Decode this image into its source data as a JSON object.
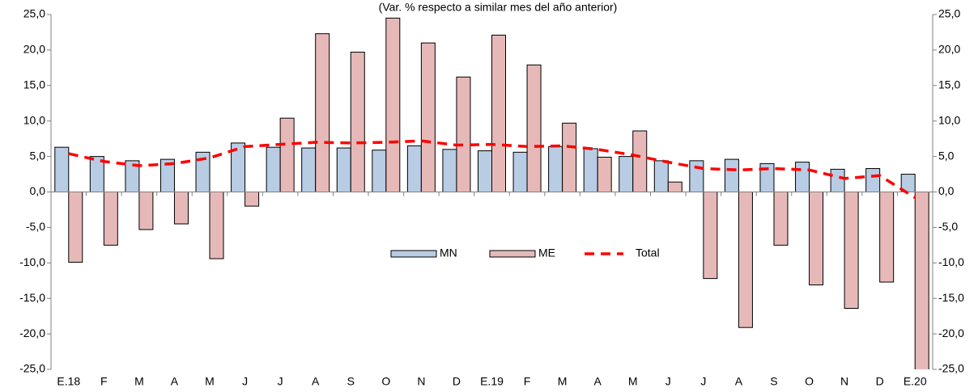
{
  "chart_data": {
    "type": "bar",
    "title": "(Var. % respecto a similar mes del año anterior)",
    "categories": [
      "E.18",
      "F",
      "M",
      "A",
      "M",
      "J",
      "J",
      "A",
      "S",
      "O",
      "N",
      "D",
      "E.19",
      "F",
      "M",
      "A",
      "M",
      "J",
      "J",
      "A",
      "S",
      "O",
      "N",
      "D",
      "E.20"
    ],
    "series": [
      {
        "name": "MN",
        "color": "#b8cce4",
        "type": "bar",
        "values": [
          6.3,
          5.0,
          4.4,
          4.6,
          5.6,
          6.9,
          6.3,
          6.2,
          6.2,
          5.9,
          6.5,
          6.0,
          5.8,
          5.6,
          6.4,
          6.1,
          5.0,
          4.4,
          4.4,
          4.6,
          4.0,
          4.2,
          3.2,
          3.3,
          2.5
        ]
      },
      {
        "name": "ME",
        "color": "#e6b9b8",
        "type": "bar",
        "values": [
          -9.9,
          -7.5,
          -5.3,
          -4.5,
          -9.4,
          -2.0,
          10.4,
          22.3,
          19.7,
          24.5,
          21.0,
          16.2,
          22.1,
          17.9,
          9.7,
          4.9,
          8.6,
          1.4,
          -12.2,
          -19.1,
          -7.5,
          -13.1,
          -16.4,
          -12.7,
          -26.0
        ]
      },
      {
        "name": "Total",
        "color": "#ff0000",
        "type": "line",
        "values": [
          5.4,
          4.3,
          3.7,
          4.0,
          4.8,
          6.4,
          6.7,
          7.0,
          6.9,
          7.0,
          7.2,
          6.6,
          6.7,
          6.4,
          6.5,
          6.0,
          5.2,
          4.2,
          3.3,
          3.1,
          3.3,
          3.1,
          1.9,
          2.3,
          -0.8
        ]
      }
    ],
    "ylim": [
      -25,
      25
    ],
    "yticks": [
      {
        "value": 25,
        "label": "25,0"
      },
      {
        "value": 20,
        "label": "20,0"
      },
      {
        "value": 15,
        "label": "15,0"
      },
      {
        "value": 10,
        "label": "10,0"
      },
      {
        "value": 5,
        "label": "5,0"
      },
      {
        "value": 0,
        "label": "0,0"
      },
      {
        "value": -5,
        "label": "-5,0"
      },
      {
        "value": -10,
        "label": "-10,0"
      },
      {
        "value": -15,
        "label": "-15,0"
      },
      {
        "value": -20,
        "label": "-20,0"
      },
      {
        "value": -25,
        "label": "-25,0"
      }
    ],
    "y2lim": [
      -25,
      25
    ],
    "y2ticks": [
      {
        "value": 25,
        "label": "25,0"
      },
      {
        "value": 20,
        "label": "20,0"
      },
      {
        "value": 15,
        "label": "15,0"
      },
      {
        "value": 10,
        "label": "10,0"
      },
      {
        "value": 5,
        "label": "5,0"
      },
      {
        "value": 0,
        "label": "0,0"
      },
      {
        "value": -5,
        "label": "-5,0"
      },
      {
        "value": -10,
        "label": "-10,0"
      },
      {
        "value": -15,
        "label": "-15,0"
      },
      {
        "value": -20,
        "label": "-20,0"
      },
      {
        "value": -25,
        "label": "-25,0"
      }
    ],
    "legend": "center"
  }
}
